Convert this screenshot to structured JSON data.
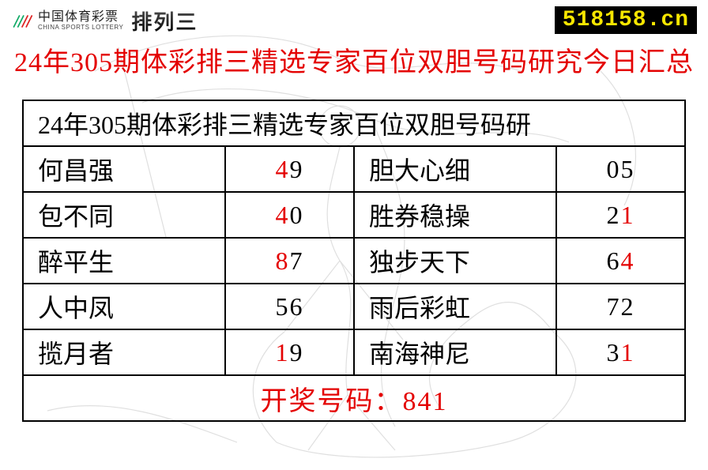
{
  "colors": {
    "red": "#e40202",
    "black": "#000000",
    "badge_bg": "#000000",
    "badge_fg": "#f7e600",
    "title": "#e40202"
  },
  "header": {
    "logo_cn": "中国体育彩票",
    "logo_en": "CHINA SPORTS LOTTERY",
    "logo_brand": "排列三",
    "site": "518158.cn"
  },
  "main_title": "24年305期体彩排三精选专家百位双胆号码研究今日汇总",
  "table": {
    "header_text": "24年305期体彩排三精选专家百位双胆号码研",
    "rows": [
      {
        "l_name": "何昌强",
        "l_d1": "4",
        "l_d2": "9",
        "r_name": "胆大心细",
        "r_d1": "0",
        "r_d2": "5"
      },
      {
        "l_name": "包不同",
        "l_d1": "4",
        "l_d2": "0",
        "r_name": "胜券稳操",
        "r_d1": "2",
        "r_d2": "1"
      },
      {
        "l_name": "醉平生",
        "l_d1": "8",
        "l_d2": "7",
        "r_name": "独步天下",
        "r_d1": "6",
        "r_d2": "4"
      },
      {
        "l_name": "人中凤",
        "l_d1": "5",
        "l_d2": "6",
        "r_name": "雨后彩虹",
        "r_d1": "7",
        "r_d2": "2"
      },
      {
        "l_name": "揽月者",
        "l_d1": "1",
        "l_d2": "9",
        "r_name": "南海神尼",
        "r_d1": "3",
        "r_d2": "1"
      }
    ],
    "hit_digits": [
      "8",
      "4",
      "1"
    ],
    "result_label": "开奖号码：",
    "result_number": "841"
  },
  "fonts": {
    "title_size": 34,
    "cell_size": 32,
    "result_size": 34
  }
}
